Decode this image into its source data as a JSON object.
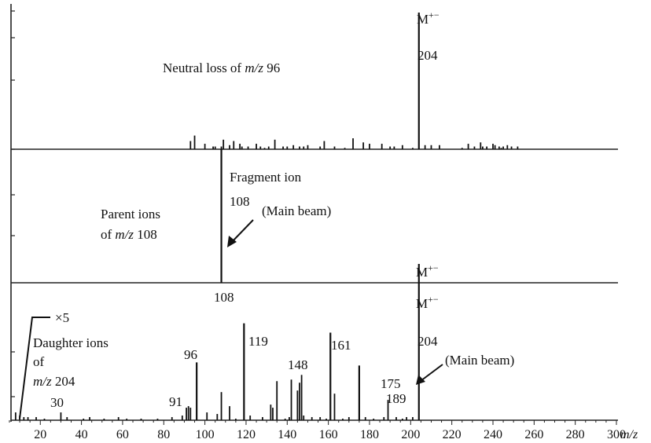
{
  "chart_data": {
    "type": "bar",
    "panels": [
      {
        "name": "Neutral loss of m/z 96",
        "label_parts": [
          "Neutral loss of ",
          "m/z",
          " 96"
        ],
        "x": [
          93,
          95,
          100,
          104,
          105,
          108,
          109,
          112,
          114,
          117,
          118,
          121,
          125,
          127,
          129,
          131,
          134,
          138,
          140,
          143,
          146,
          148,
          150,
          156,
          158,
          163,
          168,
          172,
          177,
          180,
          186,
          190,
          192,
          196,
          201,
          204,
          207,
          210,
          214,
          225,
          228,
          231,
          234,
          235,
          237,
          240,
          241,
          243,
          244,
          245,
          247,
          249,
          252
        ],
        "values": [
          6,
          10,
          4,
          2,
          2,
          2,
          7,
          3,
          6,
          4,
          2,
          2,
          4,
          2,
          1,
          2,
          7,
          2,
          2,
          3,
          2,
          2,
          3,
          2,
          6,
          2,
          1,
          8,
          5,
          4,
          4,
          2,
          2,
          3,
          1,
          100,
          3,
          3,
          3,
          1,
          4,
          2,
          5,
          2,
          2,
          4,
          3,
          2,
          1,
          2,
          3,
          2,
          2
        ],
        "annotations": [
          {
            "x": 204,
            "text": "M+−"
          },
          {
            "x": 204,
            "text": "204"
          }
        ]
      },
      {
        "name": "Parent ions of m/z 108",
        "label_parts": [
          "Parent ions",
          "of ",
          "m/z",
          " 108"
        ],
        "x": [
          108
        ],
        "values": [
          100
        ],
        "annotations": [
          {
            "x": 108,
            "text": "Fragment ion"
          },
          {
            "x": 108,
            "text": "108"
          },
          {
            "x": 108,
            "text": "(Main beam)"
          }
        ]
      },
      {
        "name": "Daughter ions of m/z 204",
        "label_parts": [
          "Daughter ions",
          "of",
          "m/z",
          " 204"
        ],
        "x": [
          8,
          10,
          12,
          14,
          18,
          22,
          30,
          33,
          41,
          44,
          51,
          58,
          62,
          69,
          77,
          84,
          89,
          91,
          92,
          93,
          96,
          101,
          106,
          108,
          112,
          115,
          119,
          122,
          128,
          132,
          133,
          135,
          139,
          141,
          142,
          145,
          146,
          147,
          148,
          152,
          156,
          159,
          161,
          163,
          167,
          170,
          175,
          178,
          182,
          187,
          189,
          193,
          196,
          198,
          201,
          204
        ],
        "values": [
          5,
          3,
          2,
          2,
          2,
          1,
          5,
          2,
          1,
          2,
          1,
          2,
          1,
          1,
          1,
          2,
          3,
          8,
          9,
          8,
          37,
          5,
          4,
          18,
          9,
          1,
          62,
          3,
          2,
          10,
          8,
          25,
          1,
          2,
          26,
          19,
          24,
          29,
          3,
          2,
          2,
          1,
          56,
          17,
          1,
          2,
          35,
          2,
          1,
          2,
          13,
          2,
          1,
          2,
          2,
          100
        ],
        "annotations": [
          {
            "x": 204,
            "text": "M+−"
          },
          {
            "x": 204,
            "text": "204"
          },
          {
            "x": 204,
            "text": "(Main beam)"
          },
          {
            "x": 108,
            "text": "108"
          },
          {
            "x": 119,
            "text": "119"
          },
          {
            "x": 148,
            "text": "148"
          },
          {
            "x": 161,
            "text": "161"
          },
          {
            "x": 175,
            "text": "175"
          },
          {
            "x": 189,
            "text": "189"
          },
          {
            "x": 96,
            "text": "96"
          },
          {
            "x": 91,
            "text": "91"
          },
          {
            "x": 30,
            "text": "30"
          },
          {
            "x": 12,
            "text": "×5"
          }
        ]
      }
    ],
    "x_ticks": [
      20,
      40,
      60,
      80,
      100,
      120,
      140,
      160,
      180,
      200,
      220,
      240,
      260,
      280,
      300
    ],
    "xlim": [
      5,
      300
    ],
    "xlabel": "m/z",
    "grid": false
  }
}
